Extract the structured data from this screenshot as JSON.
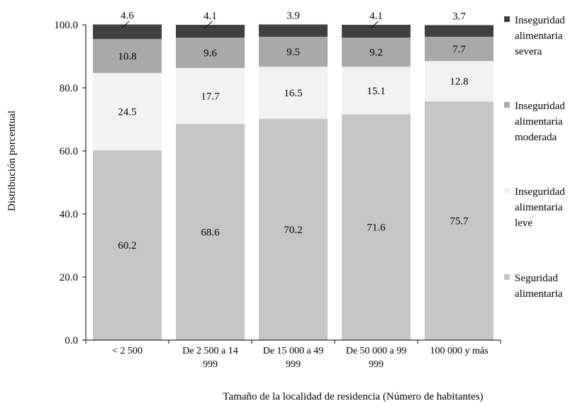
{
  "chart_data": {
    "type": "bar",
    "stacked": true,
    "title": "",
    "xlabel": "Tamaño de la localidad de residencia (Número de habitantes)",
    "ylabel": "Distribución porcentual",
    "ylim": [
      0,
      100
    ],
    "yticks": [
      "0.0",
      "20.0",
      "40.0",
      "60.0",
      "80.0",
      "100.0"
    ],
    "grid": false,
    "legend_position": "right",
    "categories": [
      [
        "< 2 500"
      ],
      [
        "De 2 500 a 14",
        "999"
      ],
      [
        "De 15 000 a 49",
        "999"
      ],
      [
        "De 50 000 a 99",
        "999"
      ],
      [
        "100 000 y más"
      ]
    ],
    "series": [
      {
        "name": [
          "Seguridad",
          "alimentaria"
        ],
        "color": "#c6c6c6",
        "values": [
          60.2,
          68.6,
          70.2,
          71.6,
          75.7
        ]
      },
      {
        "name": [
          "Inseguridad",
          "alimentaria",
          "leve"
        ],
        "color": "#f2f2f2",
        "values": [
          24.5,
          17.7,
          16.5,
          15.1,
          12.8
        ]
      },
      {
        "name": [
          "Inseguridad",
          "alimentaria",
          "moderada"
        ],
        "color": "#a9a9a9",
        "values": [
          10.8,
          9.6,
          9.5,
          9.2,
          7.7
        ]
      },
      {
        "name": [
          "Inseguridad",
          "alimentaria",
          "severa"
        ],
        "color": "#404040",
        "values": [
          4.6,
          4.1,
          3.9,
          4.1,
          3.7
        ]
      }
    ],
    "data_labels": [
      [
        "60.2",
        "68.6",
        "70.2",
        "71.6",
        "75.7"
      ],
      [
        "24.5",
        "17.7",
        "16.5",
        "15.1",
        "12.8"
      ],
      [
        "10.8",
        "9.6",
        "9.5",
        "9.2",
        "7.7"
      ],
      [
        "4.6",
        "4.1",
        "3.9",
        "4.1",
        "3.7"
      ]
    ]
  }
}
